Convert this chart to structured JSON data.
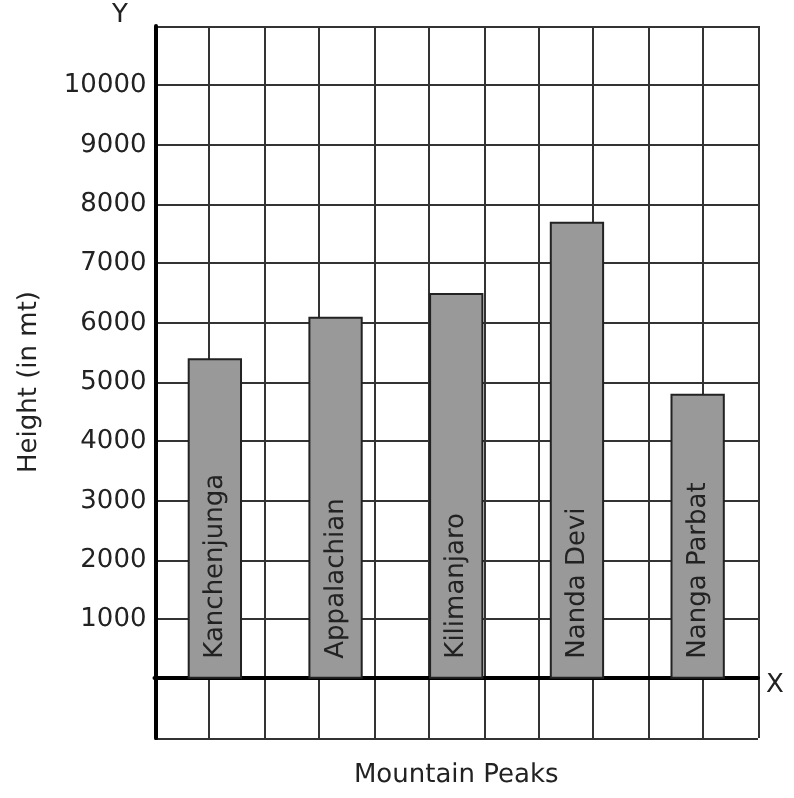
{
  "chart_data": {
    "type": "bar",
    "xlabel": "Mountain Peaks",
    "ylabel": "Height (in mt)",
    "categories": [
      "Kanchenjunga",
      "Appalachian",
      "Kilimanjaro",
      "Nanda Devi",
      "Nanga Parbat"
    ],
    "values": [
      5400,
      6100,
      6500,
      7700,
      4800
    ],
    "color": "#999999",
    "ylim": [
      -1000,
      11000
    ],
    "yticks": [
      {
        "value": -1000,
        "label": null
      },
      {
        "value": 0,
        "label": null
      },
      1000,
      2000,
      3000,
      4000,
      5000,
      6000,
      7000,
      8000,
      9000,
      10000,
      {
        "value": 11000,
        "label": null
      }
    ],
    "grid": true,
    "annotations": [
      "Y",
      "X"
    ]
  }
}
